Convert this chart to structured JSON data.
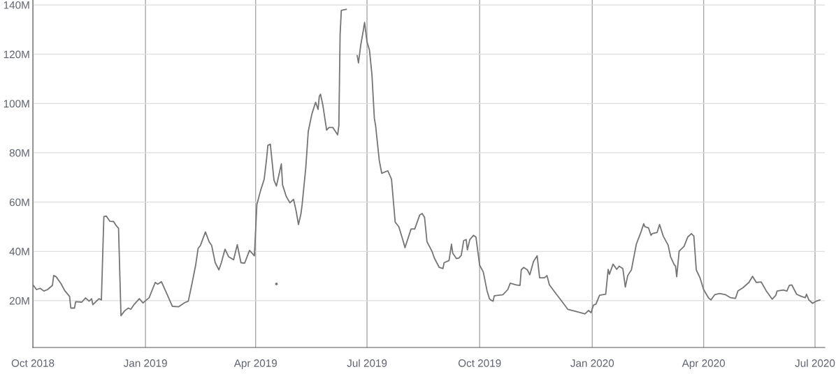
{
  "chart_data": {
    "type": "line",
    "xlim": [
      "2018-10-01",
      "2020-07-09"
    ],
    "ylim": [
      1,
      142
    ],
    "xticks": [
      {
        "value": "2018-10-01",
        "label": "Oct 2018"
      },
      {
        "value": "2019-01-01",
        "label": "Jan 2019"
      },
      {
        "value": "2019-04-01",
        "label": "Apr 2019"
      },
      {
        "value": "2019-07-01",
        "label": "Jul 2019"
      },
      {
        "value": "2019-10-01",
        "label": "Oct 2019"
      },
      {
        "value": "2020-01-01",
        "label": "Jan 2020"
      },
      {
        "value": "2020-04-01",
        "label": "Apr 2020"
      },
      {
        "value": "2020-07-01",
        "label": "Jul 2020"
      }
    ],
    "yticks": [
      {
        "value": 20,
        "label": "20M"
      },
      {
        "value": 40,
        "label": "40M"
      },
      {
        "value": 60,
        "label": "60M"
      },
      {
        "value": 80,
        "label": "80M"
      },
      {
        "value": 100,
        "label": "100M"
      },
      {
        "value": 120,
        "label": "120M"
      },
      {
        "value": 140,
        "label": "140M"
      }
    ],
    "grid": true,
    "marker": "none",
    "line_style": "solid",
    "series": [
      {
        "color": "#757575",
        "x": [
          "2018-10-01",
          "2018-10-04",
          "2018-10-07",
          "2018-10-10",
          "2018-10-13",
          "2018-10-17",
          "2018-10-18",
          "2018-10-20",
          "2018-10-24",
          "2018-10-27",
          "2018-10-31",
          "2018-11-01",
          "2018-11-04",
          "2018-11-05",
          "2018-11-10",
          "2018-11-13",
          "2018-11-16",
          "2018-11-18",
          "2018-11-19",
          "2018-11-24",
          "2018-11-26",
          "2018-11-28",
          "2018-11-30",
          "2018-12-03",
          "2018-12-06",
          "2018-12-08",
          "2018-12-10",
          "2018-12-12",
          "2018-12-15",
          "2018-12-18",
          "2018-12-20",
          "2018-12-23",
          "2018-12-27",
          "2018-12-30",
          "2019-01-04",
          "2019-01-09",
          "2019-01-11",
          "2019-01-14",
          "2019-01-16",
          "2019-01-19",
          "2019-01-23",
          "2019-01-28",
          "2019-02-02",
          "2019-02-05",
          "2019-02-08",
          "2019-02-11",
          "2019-02-13",
          "2019-02-15",
          "2019-02-19",
          "2019-02-22",
          "2019-02-24",
          "2019-02-27",
          "2019-03-02",
          "2019-03-04",
          "2019-03-07",
          "2019-03-10",
          "2019-03-14",
          "2019-03-17",
          "2019-03-20",
          "2019-03-23",
          "2019-03-27",
          "2019-03-31",
          "2019-04-02",
          "2019-04-05",
          "2019-04-08",
          "2019-04-10",
          "2019-04-11",
          "2019-04-13",
          "2019-04-16",
          "2019-04-18",
          "2019-04-22",
          "2019-04-23",
          "2019-04-26",
          "2019-04-29",
          "2019-05-02",
          "2019-05-04",
          "2019-05-06",
          "2019-05-08",
          "2019-05-09",
          "2019-05-12",
          "2019-05-14",
          "2019-05-17",
          "2019-05-20",
          "2019-05-22",
          "2019-05-23",
          "2019-05-24",
          "2019-05-26",
          "2019-05-29",
          "2019-05-31",
          "2019-06-03",
          "2019-06-07",
          "2019-06-08",
          "2019-06-09",
          "2019-06-10",
          "2019-06-14",
          "2019-06-16",
          "2019-06-22",
          "2019-06-23",
          "2019-06-24",
          "2019-06-26",
          "2019-06-28",
          "2019-06-29",
          "2019-07-01",
          "2019-07-03",
          "2019-07-05",
          "2019-07-07",
          "2019-07-08",
          "2019-07-11",
          "2019-07-13",
          "2019-07-18",
          "2019-07-21",
          "2019-07-24",
          "2019-07-27",
          "2019-07-31",
          "2019-08-01",
          "2019-08-06",
          "2019-08-09",
          "2019-08-13",
          "2019-08-15",
          "2019-08-17",
          "2019-08-19",
          "2019-08-23",
          "2019-08-25",
          "2019-08-27",
          "2019-08-29",
          "2019-09-01",
          "2019-09-02",
          "2019-09-06",
          "2019-09-08",
          "2019-09-09",
          "2019-09-12",
          "2019-09-14",
          "2019-09-16",
          "2019-09-18",
          "2019-09-20",
          "2019-09-21",
          "2019-09-23",
          "2019-09-26",
          "2019-09-28",
          "2019-10-01",
          "2019-10-04",
          "2019-10-07",
          "2019-10-09",
          "2019-10-10",
          "2019-10-12",
          "2019-10-13",
          "2019-10-20",
          "2019-10-24",
          "2019-10-26",
          "2019-10-31",
          "2019-11-03",
          "2019-11-04",
          "2019-11-06",
          "2019-11-09",
          "2019-11-11",
          "2019-11-14",
          "2019-11-17",
          "2019-11-19",
          "2019-11-23",
          "2019-11-25",
          "2019-11-27",
          "2019-12-02",
          "2019-12-08",
          "2019-12-12",
          "2019-12-16",
          "2019-12-21",
          "2019-12-26",
          "2019-12-29",
          "2019-12-31",
          "2020-01-02",
          "2020-01-04",
          "2020-01-07",
          "2020-01-12",
          "2020-01-14",
          "2020-01-15",
          "2020-01-18",
          "2020-01-21",
          "2020-01-23",
          "2020-01-26",
          "2020-01-28",
          "2020-01-30",
          "2020-02-02",
          "2020-02-06",
          "2020-02-10",
          "2020-02-12",
          "2020-02-13",
          "2020-02-16",
          "2020-02-18",
          "2020-02-19",
          "2020-02-23",
          "2020-02-25",
          "2020-02-28",
          "2020-03-03",
          "2020-03-05",
          "2020-03-08",
          "2020-03-09",
          "2020-03-10",
          "2020-03-12",
          "2020-03-16",
          "2020-03-19",
          "2020-03-22",
          "2020-03-24",
          "2020-03-26",
          "2020-03-29",
          "2020-04-01",
          "2020-04-05",
          "2020-04-07",
          "2020-04-10",
          "2020-04-14",
          "2020-04-19",
          "2020-04-23",
          "2020-04-27",
          "2020-04-29",
          "2020-05-03",
          "2020-05-08",
          "2020-05-11",
          "2020-05-14",
          "2020-05-18",
          "2020-05-22",
          "2020-05-27",
          "2020-05-30",
          "2020-05-31",
          "2020-06-05",
          "2020-06-08",
          "2020-06-10",
          "2020-06-12",
          "2020-06-16",
          "2020-06-20",
          "2020-06-23",
          "2020-06-24",
          "2020-06-26",
          "2020-06-29",
          "2020-07-02",
          "2020-07-05"
        ],
        "values": [
          26.5,
          24.5,
          25.0,
          23.9,
          24.5,
          26.2,
          30.2,
          29.7,
          26.9,
          24.1,
          21.7,
          17.0,
          17.0,
          19.6,
          19.4,
          21.1,
          19.8,
          20.8,
          18.4,
          20.8,
          20.3,
          54.1,
          54.3,
          52.2,
          52.1,
          50.5,
          49.4,
          13.9,
          15.9,
          17.0,
          16.5,
          18.6,
          20.8,
          19.1,
          21.2,
          27.4,
          26.7,
          27.7,
          25.5,
          22.2,
          17.7,
          17.5,
          19.2,
          19.8,
          26.9,
          34.4,
          41.2,
          42.5,
          47.9,
          43.9,
          42.5,
          35.4,
          32.5,
          35.4,
          40.9,
          37.8,
          36.6,
          42.7,
          35.4,
          35.2,
          40.4,
          38.2,
          59.0,
          64.6,
          69.3,
          77.8,
          83.0,
          83.5,
          68.9,
          66.5,
          75.5,
          67.0,
          62.3,
          59.7,
          61.1,
          56.6,
          50.9,
          55.2,
          59.0,
          74.1,
          88.7,
          95.8,
          100.5,
          97.6,
          102.9,
          103.8,
          99.1,
          89.2,
          90.3,
          90.3,
          87.3,
          91.1,
          127.8,
          137.8,
          138.2,
          null,
          null,
          119.4,
          116.5,
          124.1,
          129.7,
          132.9,
          125.0,
          121.7,
          111.8,
          93.9,
          91.1,
          76.9,
          71.7,
          72.7,
          69.3,
          51.9,
          50.0,
          43.4,
          41.5,
          49.1,
          49.1,
          54.7,
          55.4,
          53.8,
          43.9,
          40.1,
          37.3,
          35.4,
          33.5,
          33.0,
          35.4,
          36.3,
          42.9,
          39.3,
          37.1,
          37.3,
          38.4,
          44.4,
          44.8,
          40.6,
          44.8,
          46.5,
          45.8,
          34.4,
          31.6,
          24.1,
          20.8,
          20.3,
          19.8,
          22.0,
          22.4,
          24.5,
          27.1,
          26.4,
          26.2,
          32.5,
          33.5,
          32.5,
          30.5,
          35.9,
          38.2,
          29.3,
          29.3,
          30.2,
          26.4,
          23.1,
          19.2,
          16.5,
          16.0,
          15.3,
          14.6,
          16.0,
          15.1,
          18.2,
          18.6,
          22.2,
          22.6,
          32.7,
          30.7,
          34.8,
          32.7,
          34.0,
          33.0,
          25.5,
          30.2,
          32.5,
          42.9,
          48.1,
          51.2,
          50.0,
          49.5,
          46.5,
          47.2,
          47.7,
          50.9,
          46.2,
          42.5,
          37.8,
          34.6,
          34.0,
          29.7,
          40.1,
          42.0,
          45.8,
          47.2,
          46.2,
          32.5,
          29.3,
          24.5,
          21.1,
          20.3,
          22.4,
          22.9,
          22.4,
          21.2,
          20.9,
          23.9,
          25.2,
          27.4,
          29.9,
          27.4,
          27.6,
          24.1,
          20.6,
          22.2,
          23.9,
          24.3,
          23.9,
          26.2,
          26.4,
          22.6,
          21.7,
          21.2,
          22.6,
          20.3,
          18.9,
          19.8,
          20.3
        ]
      },
      {
        "type": "scatter",
        "color": "#757575",
        "x": [
          "2019-04-18"
        ],
        "values": [
          26.8
        ]
      }
    ]
  }
}
